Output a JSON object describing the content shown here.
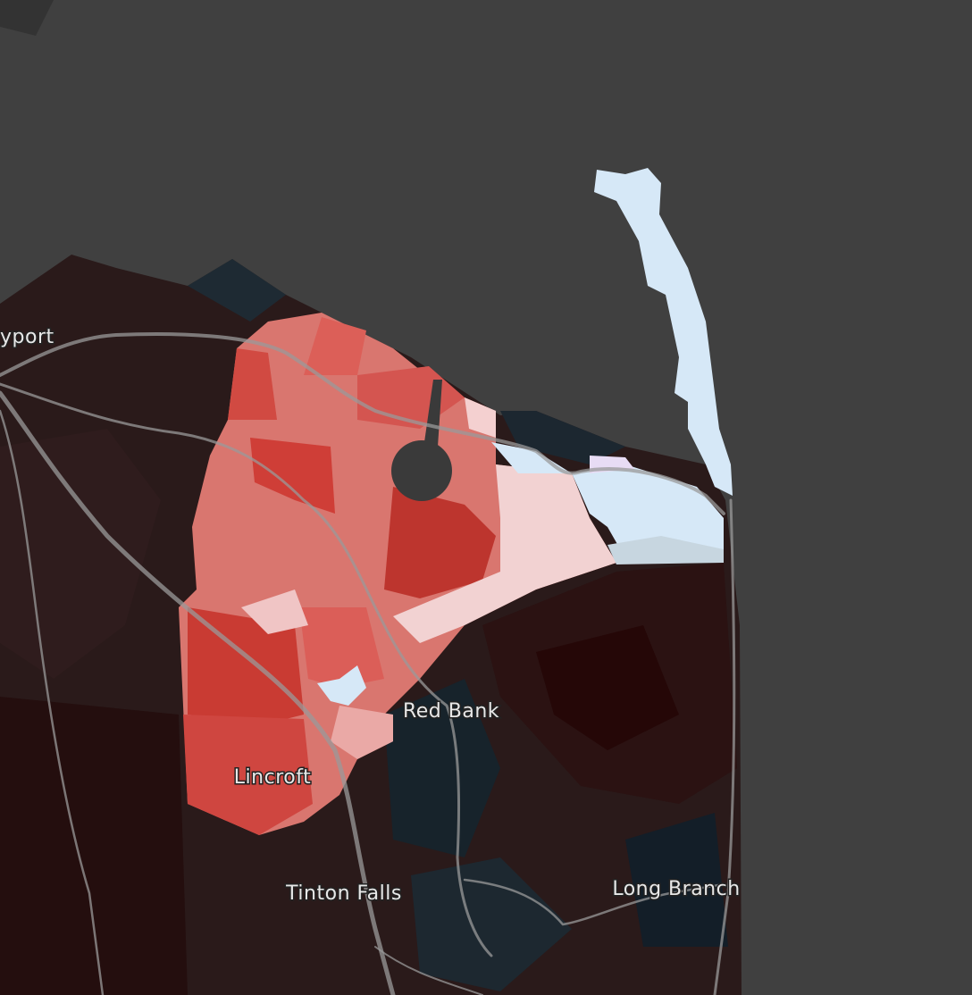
{
  "places": [
    "yport",
    "Red Bank",
    "Lincroft",
    "Tinton Falls",
    "Long Branch"
  ]
}
